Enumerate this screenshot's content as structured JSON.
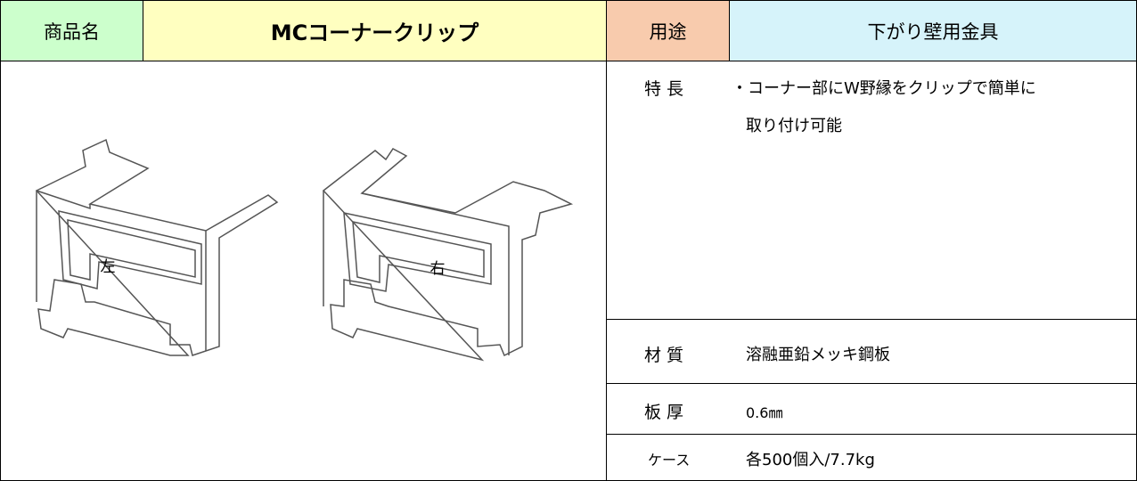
{
  "header": {
    "product_label": "商品名",
    "product_name": "MCコーナークリップ",
    "use_label": "用途",
    "use_value": "下がり壁用金具"
  },
  "image_labels": [
    "左",
    "右"
  ],
  "specs": [
    {
      "label": "特 長",
      "value": [
        "・コーナー部にW野縁をクリップで簡単に",
        "取り付け可能"
      ]
    },
    {
      "label": "材 質",
      "value": "溶融亜鉛メッキ鋼板"
    },
    {
      "label": "板 厚",
      "value": "0.6㎜"
    },
    {
      "label": "ケース",
      "value": "各500個入/7.7kg"
    }
  ]
}
